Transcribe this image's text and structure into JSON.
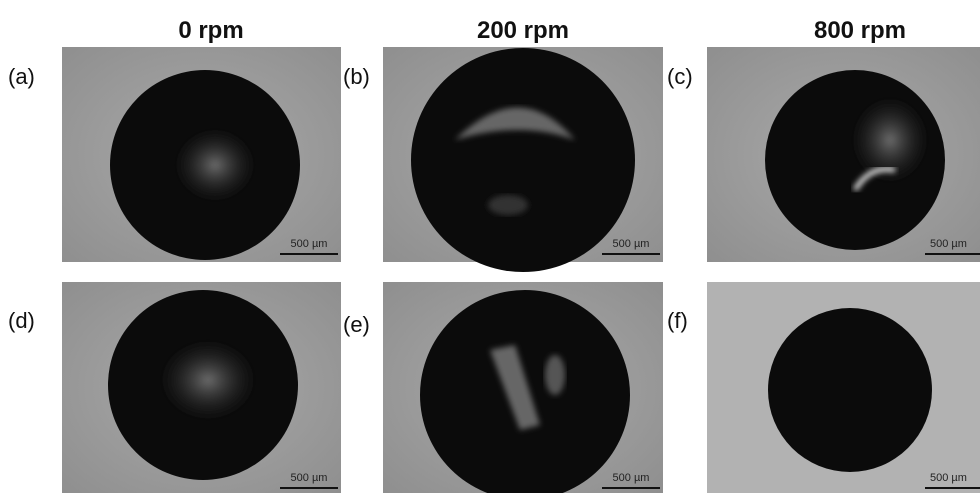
{
  "columns": [
    "0 rpm",
    "200 rpm",
    "800 rpm"
  ],
  "panels": [
    {
      "label": "(a)",
      "scale_bar": "500 µm"
    },
    {
      "label": "(b)",
      "scale_bar": "500 µm"
    },
    {
      "label": "(c)",
      "scale_bar": "500 µm"
    },
    {
      "label": "(d)",
      "scale_bar": "500 µm"
    },
    {
      "label": "(e)",
      "scale_bar": "500 µm"
    },
    {
      "label": "(f)",
      "scale_bar": "500 µm"
    }
  ]
}
